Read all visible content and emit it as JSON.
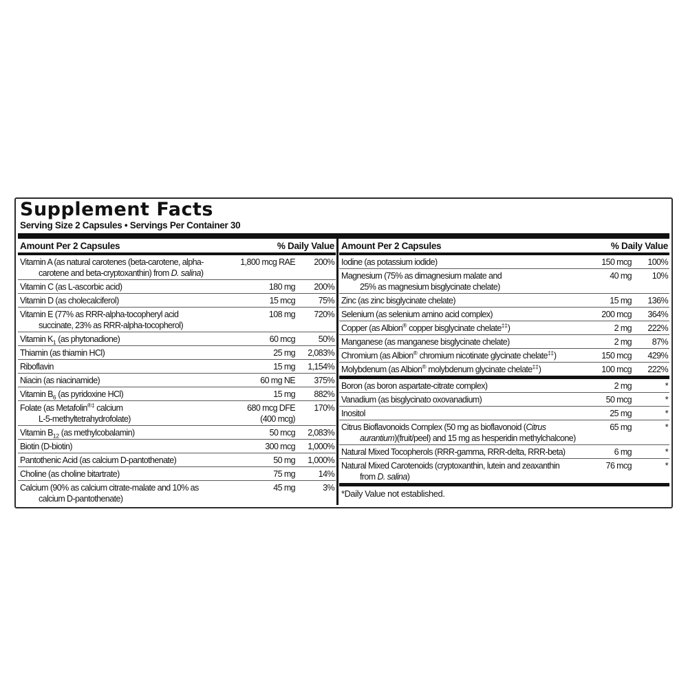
{
  "title": "Supplement Facts",
  "serving_line": "Serving Size 2 Capsules • Servings Per Container 30",
  "colors": {
    "text": "#111111",
    "bar": "#111111",
    "separator": "#5a5a5a",
    "background": "#ffffff"
  },
  "columns": [
    {
      "header_left": "Amount Per 2 Capsules",
      "header_right": "% Daily Value",
      "rows": [
        {
          "name": [
            [
              {
                "t": "Vitamin A (as natural carotenes (beta-carotene, alpha-"
              }
            ],
            [
              {
                "t": "carotene and beta-cryptoxanthin) from "
              },
              {
                "t": "D. salina",
                "i": true
              },
              {
                "t": ")"
              }
            ]
          ],
          "amount": "1,800 mcg RAE",
          "dv": "200%"
        },
        {
          "name": [
            [
              {
                "t": "Vitamin C (as L-ascorbic acid)"
              }
            ]
          ],
          "amount": "180 mg",
          "dv": "200%"
        },
        {
          "name": [
            [
              {
                "t": "Vitamin D (as cholecalciferol)"
              }
            ]
          ],
          "amount": "15 mcg",
          "dv": "75%"
        },
        {
          "name": [
            [
              {
                "t": "Vitamin E (77% as RRR-alpha-tocopheryl acid"
              }
            ],
            [
              {
                "t": "succinate, 23% as RRR-alpha-tocopherol)"
              }
            ]
          ],
          "amount": "108 mg",
          "dv": "720%"
        },
        {
          "name": [
            [
              {
                "t": "Vitamin K"
              },
              {
                "t": "1",
                "sub": true
              },
              {
                "t": "  (as phytonadione)"
              }
            ]
          ],
          "amount": "60 mcg",
          "dv": "50%"
        },
        {
          "name": [
            [
              {
                "t": "Thiamin (as thiamin HCl)"
              }
            ]
          ],
          "amount": "25 mg",
          "dv": "2,083%"
        },
        {
          "name": [
            [
              {
                "t": "Riboflavin"
              }
            ]
          ],
          "amount": "15 mg",
          "dv": "1,154%"
        },
        {
          "name": [
            [
              {
                "t": "Niacin (as niacinamide)"
              }
            ]
          ],
          "amount": "60 mg NE",
          "dv": "375%"
        },
        {
          "name": [
            [
              {
                "t": "Vitamin B"
              },
              {
                "t": "6",
                "sub": true
              },
              {
                "t": " (as pyridoxine HCl)"
              }
            ]
          ],
          "amount": "15 mg",
          "dv": "882%"
        },
        {
          "name": [
            [
              {
                "t": "Folate (as Metafolin"
              },
              {
                "t": "®‡",
                "sup": true
              },
              {
                "t": " calcium"
              }
            ],
            [
              {
                "t": "L-5-methyltetrahydrofolate)"
              }
            ]
          ],
          "amount": "680 mcg DFE\n(400 mcg)",
          "dv": "170%"
        },
        {
          "name": [
            [
              {
                "t": "Vitamin B"
              },
              {
                "t": "12",
                "sub": true
              },
              {
                "t": " (as methylcobalamin)"
              }
            ]
          ],
          "amount": "50 mcg",
          "dv": "2,083%"
        },
        {
          "name": [
            [
              {
                "t": "Biotin (D-biotin)"
              }
            ]
          ],
          "amount": "300 mcg",
          "dv": "1,000%"
        },
        {
          "name": [
            [
              {
                "t": "Pantothenic Acid (as calcium D-pantothenate)"
              }
            ]
          ],
          "amount": "50 mg",
          "dv": "1,000%"
        },
        {
          "name": [
            [
              {
                "t": "Choline (as choline bitartrate)"
              }
            ]
          ],
          "amount": "75 mg",
          "dv": "14%"
        },
        {
          "name": [
            [
              {
                "t": "Calcium (90% as calcium citrate-malate and 10% as"
              }
            ],
            [
              {
                "t": "calcium D-pantothenate)"
              }
            ]
          ],
          "amount": "45 mg",
          "dv": "3%"
        }
      ]
    },
    {
      "header_left": "Amount Per 2 Capsules",
      "header_right": "% Daily Value",
      "rows": [
        {
          "name": [
            [
              {
                "t": "Iodine (as potassium iodide)"
              }
            ]
          ],
          "amount": "150 mcg",
          "dv": "100%"
        },
        {
          "name": [
            [
              {
                "t": "Magnesium (75% as dimagnesium malate and"
              }
            ],
            [
              {
                "t": "25% as magnesium bisglycinate chelate)"
              }
            ]
          ],
          "amount": "40 mg",
          "dv": "10%"
        },
        {
          "name": [
            [
              {
                "t": "Zinc (as zinc bisglycinate chelate)"
              }
            ]
          ],
          "amount": "15 mg",
          "dv": "136%"
        },
        {
          "name": [
            [
              {
                "t": "Selenium (as selenium amino acid complex)"
              }
            ]
          ],
          "amount": "200 mcg",
          "dv": "364%"
        },
        {
          "name": [
            [
              {
                "t": "Copper (as Albion"
              },
              {
                "t": "®",
                "sup": true
              },
              {
                "t": " copper bisglycinate chelate"
              },
              {
                "t": "‡‡",
                "sup": true
              },
              {
                "t": ")"
              }
            ]
          ],
          "amount": "2 mg",
          "dv": "222%"
        },
        {
          "name": [
            [
              {
                "t": "Manganese (as manganese bisglycinate chelate)"
              }
            ]
          ],
          "amount": "2 mg",
          "dv": "87%"
        },
        {
          "name": [
            [
              {
                "t": "Chromium (as Albion"
              },
              {
                "t": "®",
                "sup": true
              },
              {
                "t": " chromium nicotinate glycinate chelate"
              },
              {
                "t": "‡‡",
                "sup": true
              },
              {
                "t": ")"
              }
            ]
          ],
          "amount": "150 mcg",
          "dv": "429%"
        },
        {
          "name": [
            [
              {
                "t": "Molybdenum (as Albion"
              },
              {
                "t": "®",
                "sup": true
              },
              {
                "t": " molybdenum glycinate chelate"
              },
              {
                "t": "‡‡",
                "sup": true
              },
              {
                "t": ")"
              }
            ]
          ],
          "amount": "100 mcg",
          "dv": "222%"
        },
        {
          "bar": true
        },
        {
          "name": [
            [
              {
                "t": "Boron (as boron aspartate-citrate complex)"
              }
            ]
          ],
          "amount": "2 mg",
          "dv": "*"
        },
        {
          "name": [
            [
              {
                "t": "Vanadium (as bisglycinato oxovanadium)"
              }
            ]
          ],
          "amount": "50 mcg",
          "dv": "*"
        },
        {
          "name": [
            [
              {
                "t": "Inositol"
              }
            ]
          ],
          "amount": "25 mg",
          "dv": "*"
        },
        {
          "name": [
            [
              {
                "t": "Citrus Bioflavonoids Complex (50 mg as bioflavonoid ("
              },
              {
                "t": "Citrus",
                "i": true
              }
            ],
            [
              {
                "t": "aurantium",
                "i": true
              },
              {
                "t": ")(fruit/peel) and 15 mg as hesperidin methylchalcone)"
              }
            ]
          ],
          "amount": "65 mg",
          "dv": "*"
        },
        {
          "name": [
            [
              {
                "t": "Natural Mixed Tocopherols (RRR-gamma, RRR-delta, RRR-beta)"
              }
            ]
          ],
          "amount": "6 mg",
          "dv": "*"
        },
        {
          "name": [
            [
              {
                "t": "Natural Mixed Carotenoids (cryptoxanthin, lutein and zeaxanthin"
              }
            ],
            [
              {
                "t": "from "
              },
              {
                "t": "D. salina",
                "i": true
              },
              {
                "t": ")"
              }
            ]
          ],
          "amount": "76 mcg",
          "dv": "*"
        },
        {
          "bar": true
        }
      ],
      "footnote": "*Daily Value not established."
    }
  ]
}
